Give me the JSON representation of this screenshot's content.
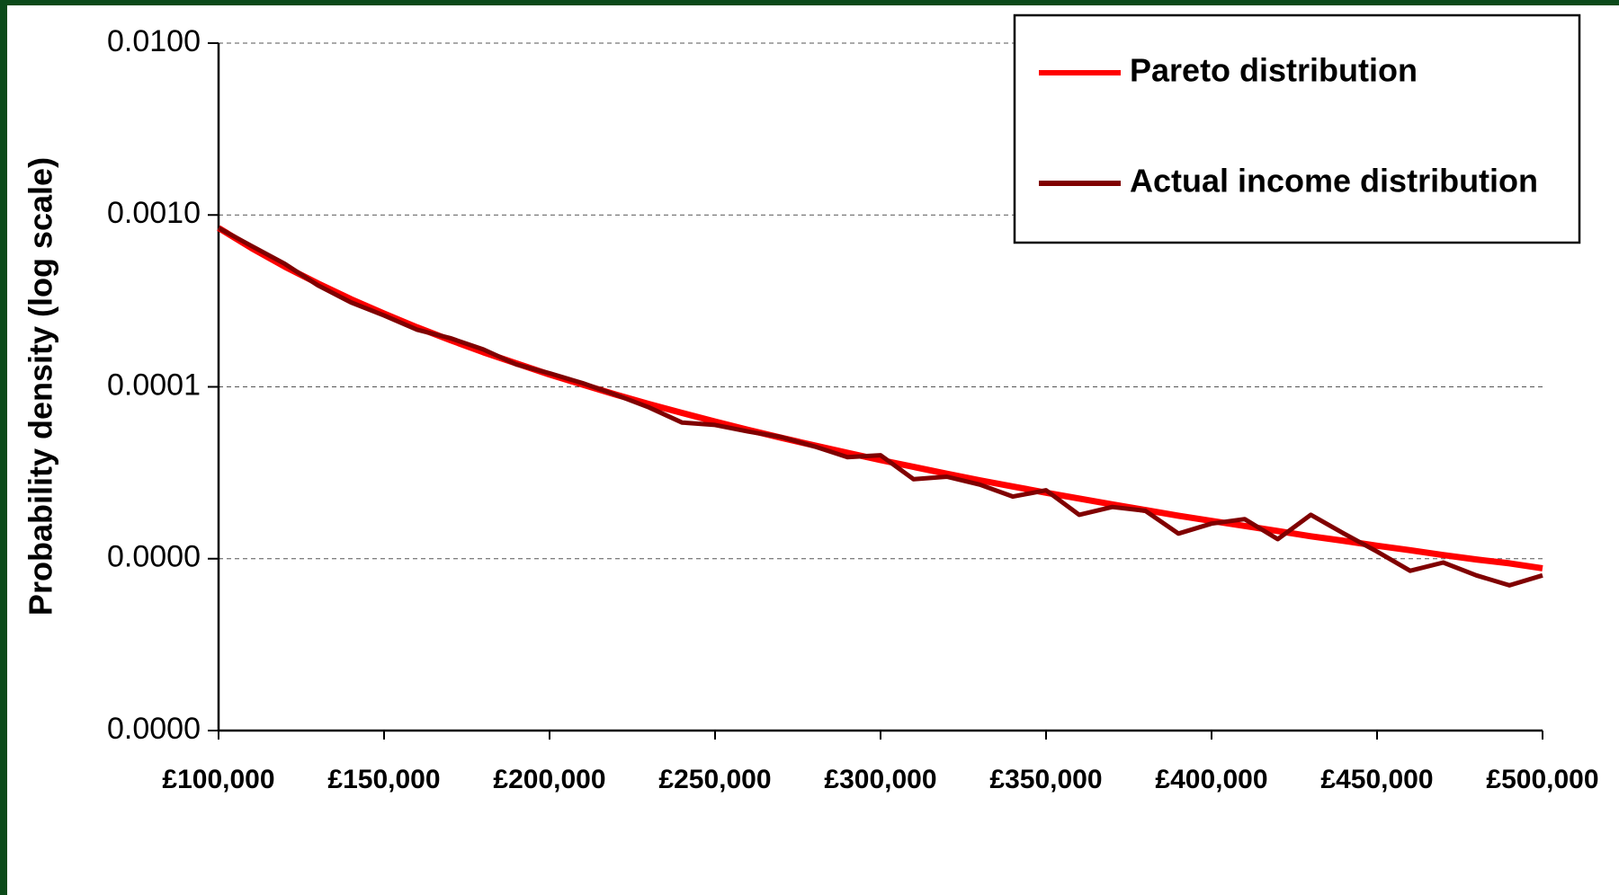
{
  "chart_data": {
    "type": "line",
    "y_label": "Probability density (log scale)",
    "yscale": "log",
    "grid": true,
    "legend": "upper right",
    "x": [
      100000,
      110000,
      120000,
      130000,
      140000,
      150000,
      160000,
      170000,
      180000,
      190000,
      200000,
      210000,
      220000,
      230000,
      240000,
      250000,
      260000,
      270000,
      280000,
      290000,
      300000,
      310000,
      320000,
      330000,
      340000,
      350000,
      360000,
      370000,
      380000,
      390000,
      400000,
      410000,
      420000,
      430000,
      440000,
      450000,
      460000,
      470000,
      480000,
      490000,
      500000
    ],
    "series": [
      {
        "name": "Pareto distribution",
        "color": "#ff0000",
        "values": [
          0.00084,
          0.000641,
          0.000501,
          0.0004,
          0.000324,
          0.000267,
          0.000222,
          0.000187,
          0.000159,
          0.000137,
          0.000118,
          0.000103,
          9.02e-05,
          7.95e-05,
          7.05e-05,
          6.28e-05,
          5.62e-05,
          5.05e-05,
          4.56e-05,
          4.13e-05,
          3.75e-05,
          3.42e-05,
          3.12e-05,
          2.86e-05,
          2.63e-05,
          2.42e-05,
          2.24e-05,
          2.07e-05,
          1.92e-05,
          1.78e-05,
          1.66e-05,
          1.55e-05,
          1.45e-05,
          1.35e-05,
          1.27e-05,
          1.19e-05,
          1.12e-05,
          1.05e-05,
          9.9e-06,
          9.4e-06,
          8.8e-06
        ]
      },
      {
        "name": "Actual income distribution",
        "color": "#800000",
        "values": [
          0.00084,
          0.00066,
          0.00052,
          0.00039,
          0.00031,
          0.00026,
          0.000215,
          0.000192,
          0.000165,
          0.000135,
          0.00012,
          0.000105,
          9e-05,
          7.6e-05,
          6.2e-05,
          6e-05,
          5.5e-05,
          5.1e-05,
          4.5e-05,
          3.9e-05,
          4e-05,
          2.9e-05,
          3e-05,
          2.7e-05,
          2.3e-05,
          2.5e-05,
          1.8e-05,
          2e-05,
          1.9e-05,
          1.4e-05,
          1.6e-05,
          1.7e-05,
          1.3e-05,
          1.8e-05,
          1.4e-05,
          1.1e-05,
          8.5e-06,
          9.5e-06,
          8e-06,
          7e-06,
          8e-06
        ]
      }
    ],
    "xlim": [
      100000,
      500000
    ],
    "xticks": [
      {
        "value": 100000,
        "label": "£100,000"
      },
      {
        "value": 150000,
        "label": "£150,000"
      },
      {
        "value": 200000,
        "label": "£200,000"
      },
      {
        "value": 250000,
        "label": "£250,000"
      },
      {
        "value": 300000,
        "label": "£300,000"
      },
      {
        "value": 350000,
        "label": "£350,000"
      },
      {
        "value": 400000,
        "label": "£400,000"
      },
      {
        "value": 450000,
        "label": "£450,000"
      },
      {
        "value": 500000,
        "label": "£500,000"
      }
    ],
    "ylim": [
      1e-06,
      0.01
    ],
    "yticks": [
      {
        "value": 0.01,
        "label": "0.0100"
      },
      {
        "value": 0.001,
        "label": "0.0010"
      },
      0.0001,
      {
        "value": 1e-05,
        "label": "0.0000"
      },
      {
        "value": 1e-06,
        "label": "0.0000"
      }
    ]
  }
}
